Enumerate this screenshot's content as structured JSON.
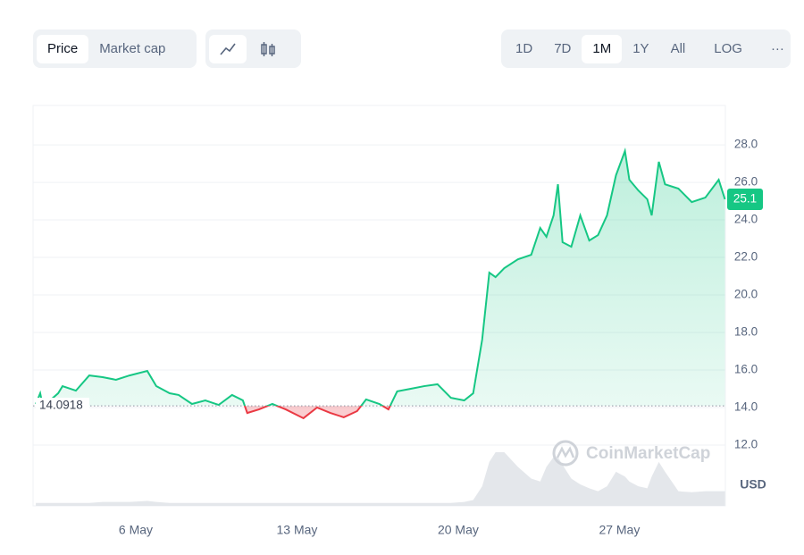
{
  "toolbar": {
    "metric_tabs": [
      "Price",
      "Market cap"
    ],
    "ranges": [
      "1D",
      "7D",
      "1M",
      "1Y",
      "All"
    ],
    "scale": "LOG",
    "more": "···"
  },
  "chart_data": {
    "type": "line",
    "color": "#16c784",
    "below_color": "#ea3943",
    "volume_color": "#e4e7eb",
    "x": [
      1.66,
      1.85,
      1.97,
      2.63,
      2.82,
      3.4,
      3.98,
      4.56,
      5.14,
      5.73,
      6.5,
      6.89,
      7.47,
      7.86,
      8.44,
      9.02,
      9.6,
      10.18,
      10.65,
      10.84,
      11.35,
      11.93,
      12.51,
      13.28,
      13.87,
      14.45,
      15.03,
      15.61,
      16.0,
      16.58,
      16.97,
      17.35,
      17.94,
      18.52,
      19.1,
      19.68,
      20.26,
      20.65,
      21.04,
      21.35,
      21.62,
      22.0,
      22.59,
      23.17,
      23.56,
      23.83,
      24.14,
      24.33,
      24.53,
      24.91,
      25.3,
      25.69,
      26.07,
      26.46,
      26.85,
      27.24,
      27.43,
      27.82,
      28.21,
      28.4,
      28.71,
      28.98,
      29.56,
      30.14,
      30.73,
      31.31,
      31.58
    ],
    "values": [
      14.19,
      14.76,
      14.05,
      14.76,
      15.14,
      14.9,
      15.71,
      15.62,
      15.48,
      15.71,
      15.95,
      15.14,
      14.76,
      14.67,
      14.19,
      14.38,
      14.14,
      14.67,
      14.38,
      13.71,
      13.9,
      14.19,
      13.9,
      13.43,
      14.0,
      13.71,
      13.48,
      13.81,
      14.43,
      14.19,
      13.9,
      14.86,
      15.0,
      15.14,
      15.24,
      14.52,
      14.38,
      14.76,
      17.62,
      21.19,
      20.95,
      21.43,
      21.9,
      22.14,
      23.57,
      23.1,
      24.24,
      25.9,
      22.81,
      22.57,
      24.24,
      22.9,
      23.19,
      24.24,
      26.38,
      27.67,
      26.14,
      25.57,
      25.1,
      24.24,
      27.1,
      25.9,
      25.67,
      24.95,
      25.19,
      26.14,
      25.1
    ],
    "volume": [
      3,
      3,
      3,
      3,
      3,
      3,
      3,
      4,
      4,
      4,
      5,
      4,
      3,
      3,
      3,
      3,
      3,
      3,
      3,
      3,
      3,
      3,
      3,
      3,
      3,
      3,
      3,
      3,
      3,
      3,
      3,
      3,
      3,
      3,
      3,
      3,
      4,
      6,
      20,
      45,
      55,
      55,
      40,
      28,
      25,
      40,
      50,
      50,
      42,
      28,
      22,
      18,
      15,
      20,
      35,
      30,
      25,
      20,
      18,
      30,
      45,
      35,
      15,
      14,
      15,
      15,
      15
    ],
    "xlim": [
      1.54,
      31.6
    ],
    "ylim": [
      8.76,
      30.1
    ],
    "xticks": [
      {
        "value": 6,
        "label": "6 May"
      },
      {
        "value": 13,
        "label": "13 May"
      },
      {
        "value": 20,
        "label": "20 May"
      },
      {
        "value": 27,
        "label": "27 May"
      }
    ],
    "yticks": [
      {
        "value": 12,
        "label": "12.0"
      },
      {
        "value": 14,
        "label": "14.0"
      },
      {
        "value": 16,
        "label": "16.0"
      },
      {
        "value": 18,
        "label": "18.0"
      },
      {
        "value": 20,
        "label": "20.0"
      },
      {
        "value": 22,
        "label": "22.0"
      },
      {
        "value": 24,
        "label": "24.0"
      },
      {
        "value": 26,
        "label": "26.0"
      },
      {
        "value": 28,
        "label": "28.0"
      }
    ],
    "grid": true,
    "baseline": 14.0918,
    "last_price": 25.1,
    "watermark": "CoinMarketCap",
    "currency_label": "USD"
  }
}
